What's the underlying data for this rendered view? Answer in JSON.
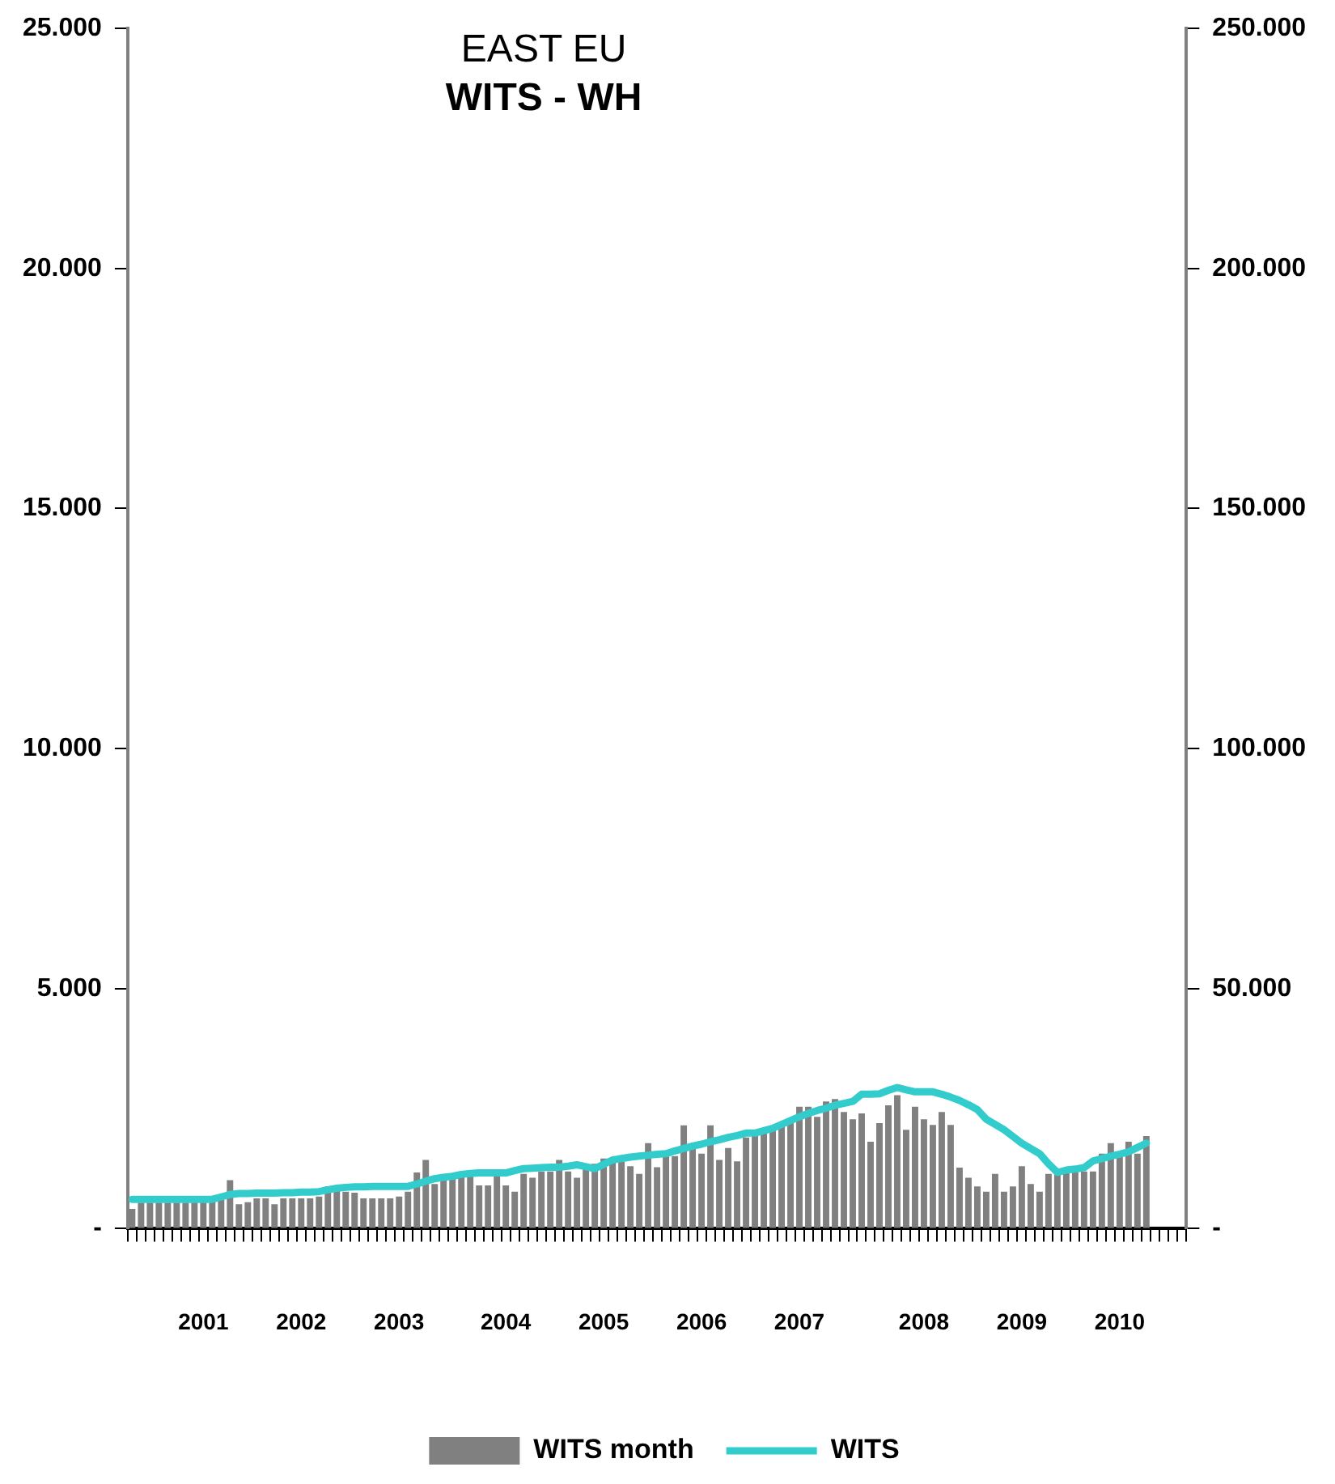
{
  "chart_data": {
    "type": "bar",
    "title": "EAST EU",
    "subtitle": "WITS - WH",
    "categories": [
      null,
      null,
      null,
      null,
      null,
      null,
      null,
      null,
      "2001",
      null,
      null,
      null,
      null,
      null,
      null,
      null,
      null,
      null,
      null,
      "2002",
      null,
      null,
      null,
      null,
      null,
      null,
      null,
      null,
      null,
      null,
      "2003",
      null,
      null,
      null,
      null,
      null,
      null,
      null,
      null,
      null,
      null,
      null,
      "2004",
      null,
      null,
      null,
      null,
      null,
      null,
      null,
      null,
      null,
      null,
      "2005",
      null,
      null,
      null,
      null,
      null,
      null,
      null,
      null,
      null,
      null,
      "2006",
      null,
      null,
      null,
      null,
      null,
      null,
      null,
      null,
      null,
      null,
      "2007",
      null,
      null,
      null,
      null,
      null,
      null,
      null,
      null,
      null,
      null,
      null,
      null,
      null,
      "2008",
      null,
      null,
      null,
      null,
      null,
      null,
      null,
      null,
      null,
      null,
      "2009",
      null,
      null,
      null,
      null,
      null,
      null,
      null,
      null,
      null,
      null,
      "2010",
      null,
      null,
      null,
      null,
      null,
      null,
      null
    ],
    "series": [
      {
        "name": "WITS month",
        "color": "#808080",
        "values": [
          410,
          540,
          540,
          540,
          540,
          540,
          540,
          580,
          580,
          580,
          610,
          1010,
          510,
          550,
          630,
          630,
          510,
          630,
          630,
          630,
          630,
          670,
          880,
          790,
          770,
          750,
          630,
          630,
          630,
          630,
          670,
          770,
          1170,
          1430,
          930,
          1000,
          1090,
          1070,
          1090,
          900,
          900,
          1090,
          900,
          770,
          1140,
          1060,
          1190,
          1190,
          1430,
          1190,
          1060,
          1250,
          1350,
          1460,
          1460,
          1400,
          1300,
          1140,
          1780,
          1280,
          1600,
          1510,
          2150,
          1700,
          1560,
          2150,
          1430,
          1680,
          1400,
          1900,
          1930,
          1990,
          2110,
          2200,
          2250,
          2540,
          2540,
          2330,
          2650,
          2700,
          2430,
          2280,
          2400,
          1810,
          2200,
          2570,
          2780,
          2060,
          2540,
          2280,
          2160,
          2430,
          2160,
          1270,
          1060,
          880,
          770,
          1140,
          770,
          880,
          1300,
          930,
          770,
          1140,
          1140,
          1190,
          1190,
          1190,
          1190,
          1560,
          1780,
          1560,
          1810,
          1560,
          1930,
          null,
          null,
          null,
          null
        ]
      },
      {
        "name": "WITS",
        "type": "line",
        "axis": "y2",
        "color": "#33cccc",
        "values": [
          6100,
          6100,
          6100,
          6100,
          6100,
          6100,
          6100,
          6100,
          6100,
          6100,
          6600,
          7100,
          7300,
          7300,
          7400,
          7400,
          7400,
          7500,
          7500,
          7600,
          7600,
          7700,
          8100,
          8400,
          8600,
          8700,
          8700,
          8800,
          8800,
          8800,
          8800,
          8800,
          9300,
          9900,
          10400,
          10700,
          10900,
          11300,
          11500,
          11600,
          11600,
          11600,
          11600,
          12100,
          12500,
          12600,
          12700,
          12800,
          12800,
          13000,
          13300,
          12900,
          12500,
          13400,
          14300,
          14600,
          14900,
          15100,
          15300,
          15500,
          15600,
          16200,
          16700,
          17200,
          17600,
          18100,
          18500,
          19000,
          19400,
          19900,
          19900,
          20400,
          20900,
          21700,
          22500,
          23300,
          24000,
          24600,
          25100,
          25700,
          26100,
          26500,
          28000,
          28000,
          28100,
          28800,
          29400,
          28900,
          28500,
          28500,
          28500,
          28000,
          27400,
          26700,
          25800,
          24800,
          22800,
          21700,
          20600,
          19200,
          17800,
          16700,
          15600,
          13500,
          11700,
          12200,
          12400,
          12700,
          14100,
          14600,
          15100,
          15500,
          16000,
          16900,
          17800,
          null,
          null,
          null,
          null
        ]
      }
    ],
    "ylim": [
      0,
      25000
    ],
    "yticks": [
      {
        "value": 0,
        "label": "-"
      },
      {
        "value": 5000,
        "label": "5.000"
      },
      {
        "value": 10000,
        "label": "10.000"
      },
      {
        "value": 15000,
        "label": "15.000"
      },
      {
        "value": 20000,
        "label": "20.000"
      },
      {
        "value": 25000,
        "label": "25.000"
      }
    ],
    "y2lim": [
      0,
      250000
    ],
    "y2ticks": [
      {
        "value": 0,
        "label": "-"
      },
      {
        "value": 50000,
        "label": "50.000"
      },
      {
        "value": 100000,
        "label": "100.000"
      },
      {
        "value": 150000,
        "label": "150.000"
      },
      {
        "value": 200000,
        "label": "200.000"
      },
      {
        "value": 250000,
        "label": "250.000"
      }
    ],
    "grid": false,
    "legend": "bottom"
  }
}
